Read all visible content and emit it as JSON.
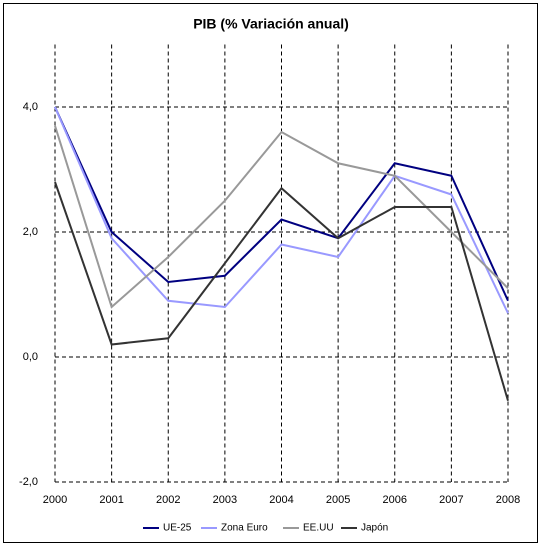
{
  "chart_data": {
    "type": "line",
    "title": "PIB (% Variación anual)",
    "categories": [
      "2000",
      "2001",
      "2002",
      "2003",
      "2004",
      "2005",
      "2006",
      "2007",
      "2008"
    ],
    "series": [
      {
        "name": "UE-25",
        "color": "#000080",
        "values": [
          4.0,
          2.0,
          1.2,
          1.3,
          2.2,
          1.9,
          3.1,
          2.9,
          0.9
        ]
      },
      {
        "name": "Zona Euro",
        "color": "#9999ff",
        "values": [
          4.0,
          1.9,
          0.9,
          0.8,
          1.8,
          1.6,
          2.9,
          2.6,
          0.7
        ]
      },
      {
        "name": "EE.UU",
        "color": "#999999",
        "values": [
          3.7,
          0.8,
          1.6,
          2.5,
          3.6,
          3.1,
          2.9,
          2.0,
          1.1
        ]
      },
      {
        "name": "Japón",
        "color": "#333333",
        "values": [
          2.8,
          0.2,
          0.3,
          1.5,
          2.7,
          1.9,
          2.4,
          2.4,
          -0.7
        ]
      }
    ],
    "ylim": [
      -2,
      5
    ],
    "yticks": [
      {
        "value": -2,
        "label": "-2,0"
      },
      {
        "value": 0,
        "label": "0,0"
      },
      {
        "value": 2,
        "label": "2,0"
      },
      {
        "value": 4,
        "label": "4,0"
      }
    ],
    "grid": true,
    "legend": "bottom"
  }
}
